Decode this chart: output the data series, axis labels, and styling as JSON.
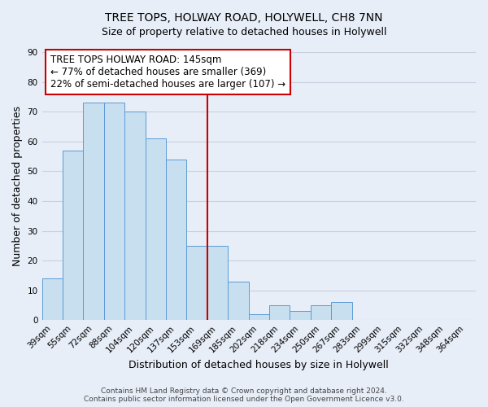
{
  "title": "TREE TOPS, HOLWAY ROAD, HOLYWELL, CH8 7NN",
  "subtitle": "Size of property relative to detached houses in Holywell",
  "xlabel": "Distribution of detached houses by size in Holywell",
  "ylabel": "Number of detached properties",
  "bar_labels": [
    "39sqm",
    "55sqm",
    "72sqm",
    "88sqm",
    "104sqm",
    "120sqm",
    "137sqm",
    "153sqm",
    "169sqm",
    "185sqm",
    "202sqm",
    "218sqm",
    "234sqm",
    "250sqm",
    "267sqm",
    "283sqm",
    "299sqm",
    "315sqm",
    "332sqm",
    "348sqm",
    "364sqm"
  ],
  "bar_values": [
    14,
    57,
    73,
    73,
    70,
    61,
    54,
    25,
    25,
    13,
    2,
    5,
    3,
    5,
    6,
    0,
    0,
    0,
    0,
    0,
    0
  ],
  "bar_color": "#c8dff0",
  "bar_edge_color": "#5b9bd5",
  "red_line_x": 7.5,
  "highlight_color": "#cc0000",
  "ylim": [
    0,
    90
  ],
  "yticks": [
    0,
    10,
    20,
    30,
    40,
    50,
    60,
    70,
    80,
    90
  ],
  "annotation_box_text": "TREE TOPS HOLWAY ROAD: 145sqm\n← 77% of detached houses are smaller (369)\n22% of semi-detached houses are larger (107) →",
  "annotation_box_edge_color": "#cc0000",
  "annotation_box_bg": "#ffffff",
  "footer_line1": "Contains HM Land Registry data © Crown copyright and database right 2024.",
  "footer_line2": "Contains public sector information licensed under the Open Government Licence v3.0.",
  "title_fontsize": 10,
  "subtitle_fontsize": 9,
  "axis_label_fontsize": 9,
  "tick_fontsize": 7.5,
  "annotation_fontsize": 8.5,
  "footer_fontsize": 6.5,
  "grid_color": "#c8d0e0",
  "background_color": "#e8eef8"
}
